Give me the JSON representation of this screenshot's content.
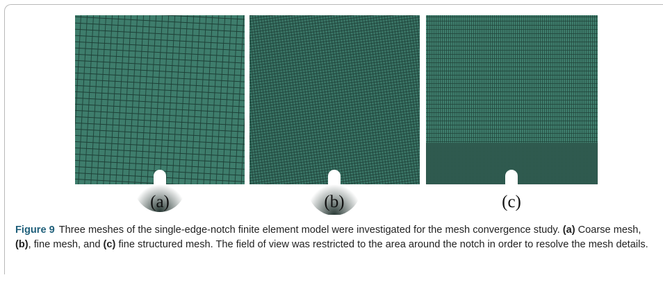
{
  "figure": {
    "panels": [
      {
        "label": "(a)"
      },
      {
        "label": "(b)"
      },
      {
        "label": "(c)"
      }
    ],
    "caption": {
      "title": "Figure 9",
      "segments": [
        {
          "text": "Three meshes of the single-edge-notch finite element model were investigated for the mesh convergence study. ",
          "bold": false
        },
        {
          "text": "(a)",
          "bold": true
        },
        {
          "text": " Coarse mesh, ",
          "bold": false
        },
        {
          "text": "(b)",
          "bold": true
        },
        {
          "text": ", fine mesh, and ",
          "bold": false
        },
        {
          "text": "(c)",
          "bold": true
        },
        {
          "text": " fine structured mesh. The field of view was restricted to the area around the notch in order to resolve the mesh details.",
          "bold": false
        }
      ]
    }
  }
}
